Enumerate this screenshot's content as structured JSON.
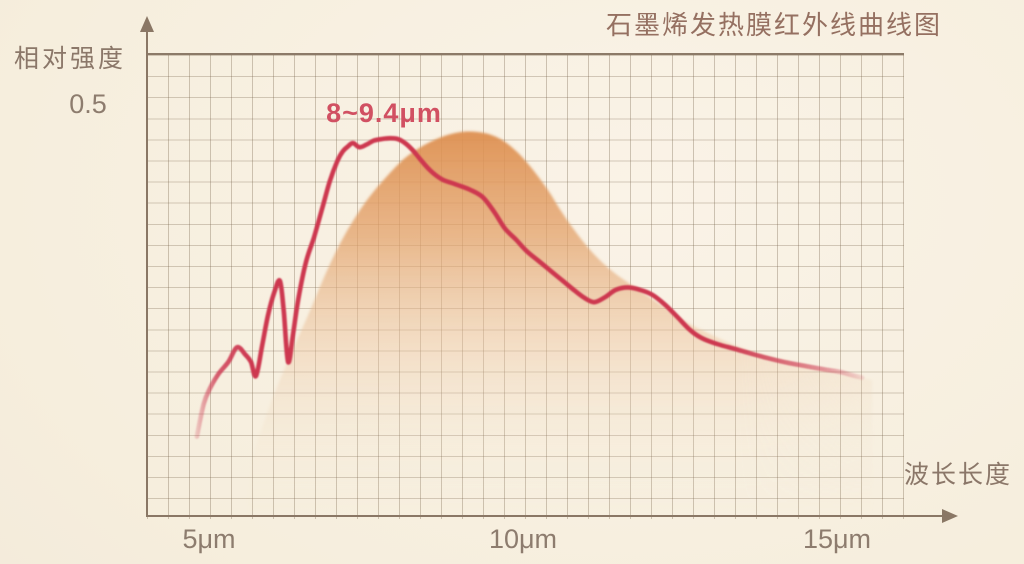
{
  "title": "石墨烯发热膜红外线曲线图",
  "y_axis": {
    "label": "相对强度",
    "tick": "0.5"
  },
  "x_axis": {
    "label": "波长长度",
    "ticks": [
      "5μm",
      "10μm",
      "15μm"
    ]
  },
  "annotation": "8~9.4μm",
  "colors": {
    "background": "#f7efe1",
    "grid": "#c6b8a4",
    "axis": "#8a7765",
    "label_text": "#8b7769",
    "title_text": "#957061",
    "curve": "#cd3750",
    "annotation_text": "#d15062",
    "area_top": "#dd8e4e"
  },
  "chart_data": {
    "type": "line",
    "title": "石墨烯发热膜红外线曲线图",
    "xlabel": "波长长度",
    "ylabel": "相对强度",
    "x_ticks": [
      "5μm",
      "10μm",
      "15μm"
    ],
    "x_tick_values": [
      5,
      10,
      15
    ],
    "y_tick": 0.5,
    "xlim": [
      4.6,
      16.2
    ],
    "ylim": [
      0,
      0.57
    ],
    "grid": true,
    "annotation": {
      "text": "8~9.4μm",
      "x": 7.8,
      "y": 0.52
    },
    "series": [
      {
        "id": "infrared-curve",
        "style": "jagged-line",
        "color": "#cd3750",
        "points": [
          [
            4.79,
            0.098
          ],
          [
            4.9,
            0.138
          ],
          [
            5.0,
            0.157
          ],
          [
            5.13,
            0.174
          ],
          [
            5.29,
            0.189
          ],
          [
            5.43,
            0.207
          ],
          [
            5.56,
            0.198
          ],
          [
            5.65,
            0.189
          ],
          [
            5.73,
            0.172
          ],
          [
            5.83,
            0.21
          ],
          [
            5.92,
            0.246
          ],
          [
            6.02,
            0.274
          ],
          [
            6.11,
            0.288
          ],
          [
            6.17,
            0.252
          ],
          [
            6.24,
            0.189
          ],
          [
            6.32,
            0.224
          ],
          [
            6.4,
            0.265
          ],
          [
            6.52,
            0.31
          ],
          [
            6.65,
            0.341
          ],
          [
            6.78,
            0.376
          ],
          [
            6.9,
            0.409
          ],
          [
            7.02,
            0.434
          ],
          [
            7.11,
            0.446
          ],
          [
            7.19,
            0.452
          ],
          [
            7.27,
            0.456
          ],
          [
            7.37,
            0.451
          ],
          [
            7.48,
            0.454
          ],
          [
            7.6,
            0.459
          ],
          [
            7.73,
            0.461
          ],
          [
            7.86,
            0.462
          ],
          [
            7.98,
            0.461
          ],
          [
            8.08,
            0.457
          ],
          [
            8.21,
            0.448
          ],
          [
            8.33,
            0.437
          ],
          [
            8.49,
            0.423
          ],
          [
            8.68,
            0.412
          ],
          [
            8.89,
            0.406
          ],
          [
            9.13,
            0.399
          ],
          [
            9.33,
            0.39
          ],
          [
            9.52,
            0.371
          ],
          [
            9.68,
            0.352
          ],
          [
            9.86,
            0.338
          ],
          [
            10.03,
            0.324
          ],
          [
            10.22,
            0.312
          ],
          [
            10.41,
            0.3
          ],
          [
            10.6,
            0.288
          ],
          [
            10.79,
            0.276
          ],
          [
            10.95,
            0.267
          ],
          [
            11.1,
            0.262
          ],
          [
            11.27,
            0.268
          ],
          [
            11.44,
            0.277
          ],
          [
            11.63,
            0.28
          ],
          [
            11.83,
            0.277
          ],
          [
            12.02,
            0.271
          ],
          [
            12.22,
            0.259
          ],
          [
            12.43,
            0.243
          ],
          [
            12.62,
            0.228
          ],
          [
            12.81,
            0.218
          ],
          [
            13.05,
            0.211
          ],
          [
            13.33,
            0.205
          ],
          [
            13.6,
            0.199
          ],
          [
            13.89,
            0.193
          ],
          [
            14.17,
            0.188
          ],
          [
            14.46,
            0.184
          ],
          [
            14.75,
            0.18
          ],
          [
            15.0,
            0.177
          ],
          [
            15.19,
            0.173
          ],
          [
            15.35,
            0.17
          ]
        ]
      },
      {
        "id": "smooth-envelope",
        "style": "gradient-area",
        "color": "#dd8e4e",
        "points": [
          [
            5.6,
            0.006
          ],
          [
            5.68,
            0.07
          ],
          [
            5.87,
            0.118
          ],
          [
            6.11,
            0.167
          ],
          [
            6.35,
            0.21
          ],
          [
            6.59,
            0.252
          ],
          [
            6.86,
            0.301
          ],
          [
            7.14,
            0.344
          ],
          [
            7.46,
            0.383
          ],
          [
            7.78,
            0.413
          ],
          [
            8.1,
            0.438
          ],
          [
            8.41,
            0.454
          ],
          [
            8.73,
            0.465
          ],
          [
            9.05,
            0.47
          ],
          [
            9.37,
            0.468
          ],
          [
            9.63,
            0.46
          ],
          [
            9.89,
            0.444
          ],
          [
            10.13,
            0.423
          ],
          [
            10.37,
            0.398
          ],
          [
            10.59,
            0.371
          ],
          [
            10.84,
            0.344
          ],
          [
            11.1,
            0.32
          ],
          [
            11.38,
            0.3
          ],
          [
            11.67,
            0.284
          ],
          [
            11.98,
            0.268
          ],
          [
            12.3,
            0.251
          ],
          [
            12.62,
            0.235
          ],
          [
            12.94,
            0.223
          ],
          [
            13.25,
            0.212
          ],
          [
            13.6,
            0.202
          ],
          [
            13.97,
            0.194
          ],
          [
            14.37,
            0.187
          ],
          [
            14.76,
            0.179
          ],
          [
            15.16,
            0.173
          ],
          [
            15.51,
            0.167
          ]
        ]
      }
    ]
  }
}
